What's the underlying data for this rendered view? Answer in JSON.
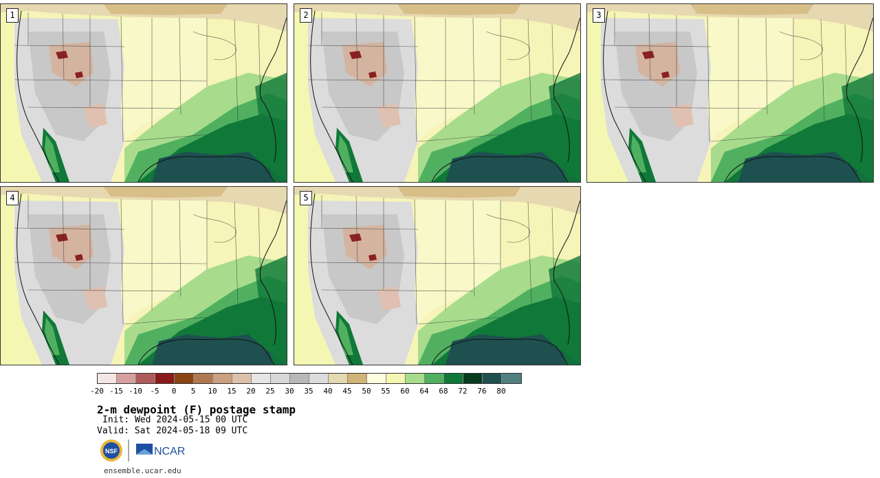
{
  "panels": [
    {
      "label": "1"
    },
    {
      "label": "2"
    },
    {
      "label": "3"
    },
    {
      "label": "4"
    },
    {
      "label": "5"
    }
  ],
  "colorbar": {
    "colors": [
      "#f5e6e6",
      "#d6a0a0",
      "#b05a5a",
      "#8b1a1a",
      "#8b4513",
      "#b07850",
      "#c9a080",
      "#dcc0aa",
      "#e6e6e6",
      "#d8d8d8",
      "#b8b8b8",
      "#dcdcdc",
      "#e6d8b0",
      "#d2b478",
      "#ffffe0",
      "#f4f7b2",
      "#a8dc8c",
      "#50b060",
      "#107838",
      "#083c1e",
      "#1e5050",
      "#508080"
    ],
    "ticks": [
      "-20",
      "-15",
      "-10",
      "-5",
      "0",
      "5",
      "10",
      "15",
      "20",
      "25",
      "30",
      "35",
      "40",
      "45",
      "50",
      "55",
      "60",
      "64",
      "68",
      "72",
      "76",
      "80"
    ]
  },
  "title": "2-m dewpoint (F) postage stamp",
  "init": "Init: Wed 2024-05-15 00 UTC",
  "valid": "Valid: Sat 2024-05-18 09 UTC",
  "logos": {
    "nsf": "NSF",
    "ncar": "NCAR"
  },
  "site": "ensemble.ucar.edu"
}
